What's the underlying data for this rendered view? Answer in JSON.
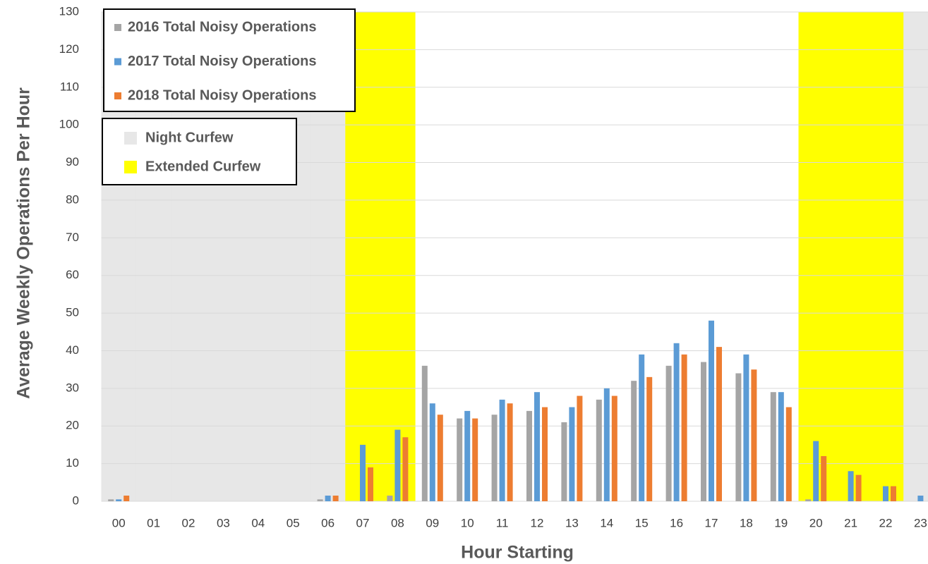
{
  "chart_data": {
    "type": "bar",
    "x_label": "Hour Starting",
    "y_label": "Average Weekly Operations Per Hour",
    "categories": [
      "00",
      "01",
      "02",
      "03",
      "04",
      "05",
      "06",
      "07",
      "08",
      "09",
      "10",
      "11",
      "12",
      "13",
      "14",
      "15",
      "16",
      "17",
      "18",
      "19",
      "20",
      "21",
      "22",
      "23"
    ],
    "series": [
      {
        "name": "2016 Total Noisy Operations",
        "color": "#a5a5a5",
        "values": [
          0.5,
          0,
          0,
          0,
          0,
          0,
          0.5,
          0,
          1.5,
          36,
          22,
          23,
          24,
          21,
          27,
          32,
          36,
          37,
          34,
          29,
          0.5,
          0,
          0,
          0
        ]
      },
      {
        "name": "2017 Total Noisy Operations",
        "color": "#5b9bd5",
        "values": [
          0.5,
          0,
          0,
          0,
          0,
          0,
          1.5,
          15,
          19,
          26,
          24,
          27,
          29,
          25,
          30,
          39,
          42,
          48,
          39,
          29,
          16,
          8,
          4,
          1.5
        ]
      },
      {
        "name": "2018 Total Noisy Operations",
        "color": "#ed7d31",
        "values": [
          1.5,
          0,
          0,
          0,
          0,
          0,
          1.5,
          9,
          17,
          23,
          22,
          26,
          25,
          28,
          28,
          33,
          39,
          41,
          35,
          25,
          12,
          7,
          4,
          0
        ]
      }
    ],
    "shading": [
      {
        "name": "Night Curfew",
        "color": "#e7e7e7",
        "hours": [
          "00",
          "01",
          "02",
          "03",
          "04",
          "05",
          "06",
          "23"
        ]
      },
      {
        "name": "Extended Curfew",
        "color": "#ffff00",
        "hours": [
          "07",
          "08",
          "20",
          "21",
          "22"
        ]
      }
    ],
    "ylim": [
      0,
      130
    ],
    "yticks": [
      0,
      10,
      20,
      30,
      40,
      50,
      60,
      70,
      80,
      90,
      100,
      110,
      120,
      130
    ],
    "grid": true
  }
}
